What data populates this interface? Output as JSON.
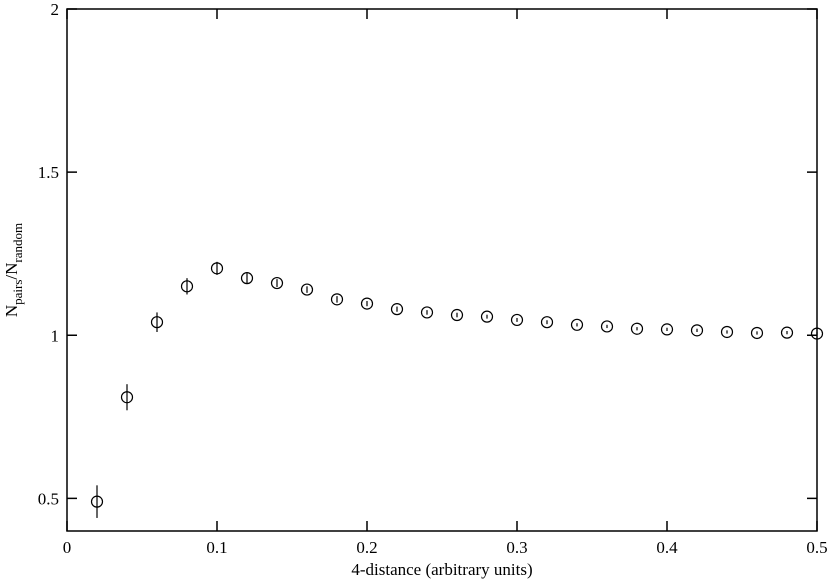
{
  "chart_data": {
    "type": "scatter",
    "xlabel": "4-distance (arbitrary units)",
    "ylabel": [
      "N",
      "pairs",
      "/N",
      "random"
    ],
    "color": "#000000",
    "xlim": [
      0,
      0.5
    ],
    "xticks": [
      0,
      0.1,
      0.2,
      0.3,
      0.4,
      0.5
    ],
    "ylim": [
      0.4,
      2
    ],
    "yticks": [
      0.5,
      1,
      1.5,
      2
    ],
    "series": [
      {
        "name": null,
        "color": "#000000",
        "x": [
          0.02,
          0.04,
          0.06,
          0.08,
          0.1,
          0.12,
          0.14,
          0.16,
          0.18,
          0.2,
          0.22,
          0.24,
          0.26,
          0.28,
          0.3,
          0.32,
          0.34,
          0.36,
          0.38,
          0.4,
          0.42,
          0.44,
          0.46,
          0.48,
          0.5
        ],
        "values": [
          0.49,
          0.81,
          1.04,
          1.15,
          1.205,
          1.175,
          1.16,
          1.14,
          1.11,
          1.097,
          1.08,
          1.07,
          1.062,
          1.057,
          1.047,
          1.04,
          1.032,
          1.027,
          1.02,
          1.018,
          1.015,
          1.01,
          1.007,
          1.008,
          1.005
        ],
        "errors": [
          0.05,
          0.04,
          0.03,
          0.025,
          0.02,
          0.015,
          0.012,
          0.01,
          0.01,
          0.008,
          0.008,
          0.007,
          0.007,
          0.006,
          0.006,
          0.006,
          0.005,
          0.005,
          0.005,
          0.005,
          0.005,
          0.005,
          0.005,
          0.005,
          0.005
        ]
      }
    ]
  }
}
